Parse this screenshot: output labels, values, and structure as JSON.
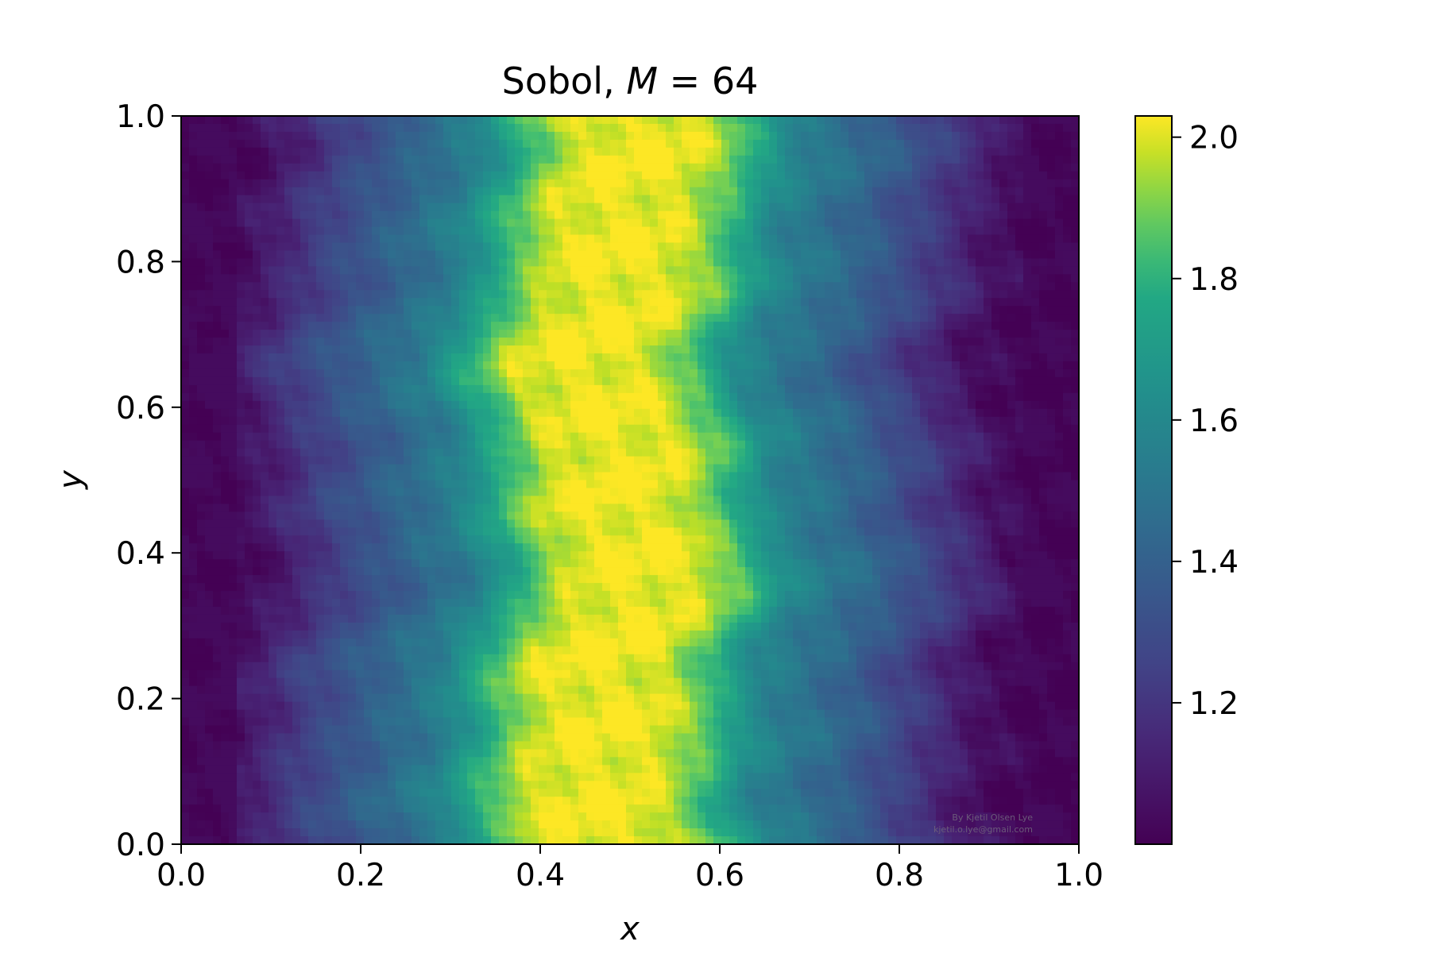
{
  "chart_data": {
    "type": "heatmap",
    "title": "Sobol, ",
    "title_math_var": "M",
    "title_math_rest": " = 64",
    "xlabel": "x",
    "ylabel": "y",
    "xlim": [
      0.0,
      1.0
    ],
    "ylim": [
      0.0,
      1.0
    ],
    "xticks": [
      "0.0",
      "0.2",
      "0.4",
      "0.6",
      "0.8",
      "1.0"
    ],
    "yticks": [
      "0.0",
      "0.2",
      "0.4",
      "0.6",
      "0.8",
      "1.0"
    ],
    "colormap": "viridis",
    "colorbar": {
      "min": 1.0,
      "max": 2.03,
      "ticks": [
        1.2,
        1.4,
        1.6,
        1.8,
        2.0
      ],
      "tick_labels": [
        "1.2",
        "1.4",
        "1.6",
        "1.8",
        "2.0"
      ]
    },
    "grid": false,
    "field_description_profile": {
      "x": [
        0.0,
        0.05,
        0.1,
        0.15,
        0.2,
        0.25,
        0.3,
        0.35,
        0.4,
        0.45,
        0.5,
        0.55,
        0.6,
        0.65,
        0.7,
        0.75,
        0.8,
        0.85,
        0.9,
        0.95,
        1.0
      ],
      "value": [
        1.02,
        1.03,
        1.12,
        1.25,
        1.35,
        1.45,
        1.55,
        1.78,
        1.98,
        2.02,
        2.02,
        2.0,
        1.85,
        1.6,
        1.5,
        1.42,
        1.3,
        1.18,
        1.06,
        1.02,
        1.01
      ]
    },
    "watermark": [
      "By Kjetil Olsen Lye",
      "kjetil.o.lye@gmail.com"
    ]
  }
}
